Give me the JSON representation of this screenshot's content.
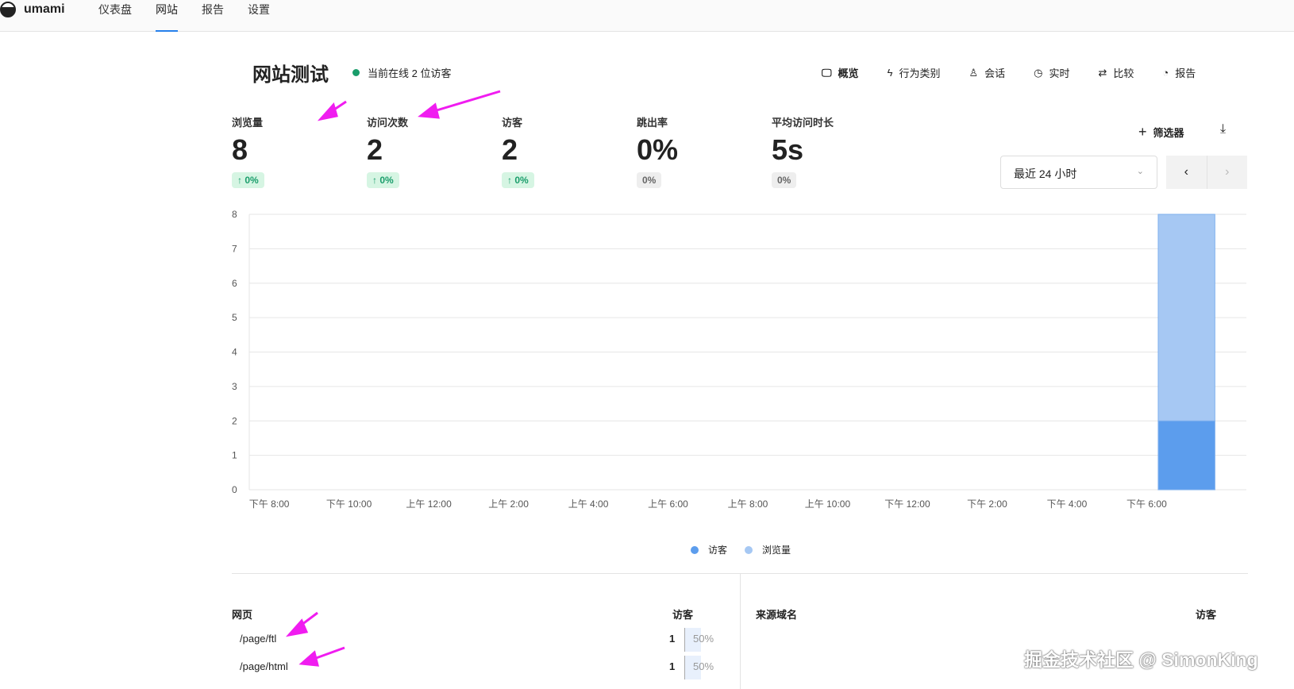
{
  "app": {
    "name": "umami",
    "nav": [
      {
        "label": "仪表盘"
      },
      {
        "label": "网站",
        "active": true
      },
      {
        "label": "报告"
      },
      {
        "label": "设置"
      }
    ]
  },
  "header": {
    "title": "网站测试",
    "online": "当前在线 2 位访客",
    "tabs": [
      {
        "label": "概览",
        "icon": "monitor-icon"
      },
      {
        "label": "行为类别",
        "icon": "lightning-icon"
      },
      {
        "label": "会话",
        "icon": "user-icon"
      },
      {
        "label": "实时",
        "icon": "clock-icon"
      },
      {
        "label": "比较",
        "icon": "swap-icon"
      },
      {
        "label": "报告",
        "icon": "pie-icon"
      }
    ]
  },
  "metrics": [
    {
      "label": "浏览量",
      "value": "8",
      "change": "0%",
      "up": true
    },
    {
      "label": "访问次数",
      "value": "2",
      "change": "0%",
      "up": true
    },
    {
      "label": "访客",
      "value": "2",
      "change": "0%",
      "up": true
    },
    {
      "label": "跳出率",
      "value": "0%",
      "change": "0%",
      "up": false
    },
    {
      "label": "平均访问时长",
      "value": "5s",
      "change": "0%",
      "up": false
    }
  ],
  "controls": {
    "filter": "筛选器",
    "range": "最近 24 小时"
  },
  "chart_data": {
    "type": "bar",
    "ylim": [
      0,
      8
    ],
    "yticks": [
      "0",
      "1",
      "2",
      "3",
      "4",
      "5",
      "6",
      "7",
      "8"
    ],
    "xticks": [
      "下午 8:00",
      "下午 10:00",
      "上午 12:00",
      "上午 2:00",
      "上午 4:00",
      "上午 6:00",
      "上午 8:00",
      "上午 10:00",
      "下午 12:00",
      "下午 2:00",
      "下午 4:00",
      "下午 6:00"
    ],
    "hours": 25,
    "series": [
      {
        "name": "浏览量",
        "color": "#a6c8f3",
        "points": [
          {
            "hour_index": 23,
            "value": 8
          }
        ]
      },
      {
        "name": "访客",
        "color": "#5c9ded",
        "points": [
          {
            "hour_index": 23,
            "value": 2
          }
        ]
      }
    ],
    "legend": "bottom",
    "grid": true
  },
  "pages": {
    "header": "网页",
    "metric": "访客",
    "rows": [
      {
        "path": "/page/ftl",
        "count": "1",
        "percent": "50%",
        "fraction": 0.5
      },
      {
        "path": "/page/html",
        "count": "1",
        "percent": "50%",
        "fraction": 0.5
      }
    ]
  },
  "referrers": {
    "header": "来源域名",
    "metric": "访客"
  },
  "watermark": "掘金技术社区 @ SimonKing"
}
